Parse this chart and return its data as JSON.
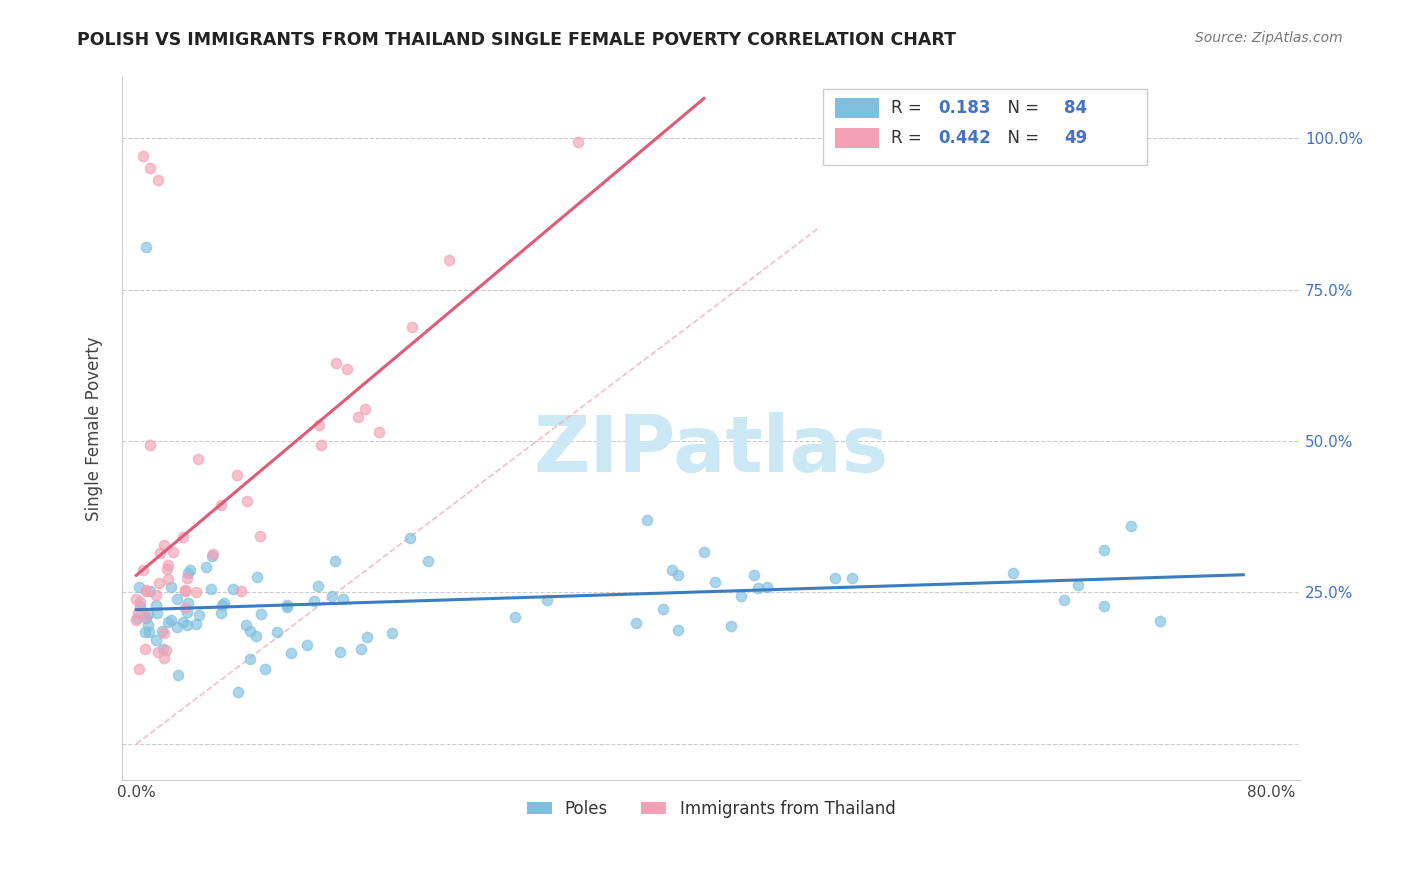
{
  "title": "POLISH VS IMMIGRANTS FROM THAILAND SINGLE FEMALE POVERTY CORRELATION CHART",
  "source": "Source: ZipAtlas.com",
  "ylabel": "Single Female Poverty",
  "R_polish": 0.183,
  "N_polish": 84,
  "R_thai": 0.442,
  "N_thai": 49,
  "color_polish": "#7fbfdf",
  "color_thai": "#f4a0b5",
  "color_line_polish": "#3a7ebf",
  "color_line_thai": "#e05a7a",
  "color_diag": "#f4a0b5",
  "watermark_color": "#cce8f4",
  "right_tick_color": "#4472c4"
}
